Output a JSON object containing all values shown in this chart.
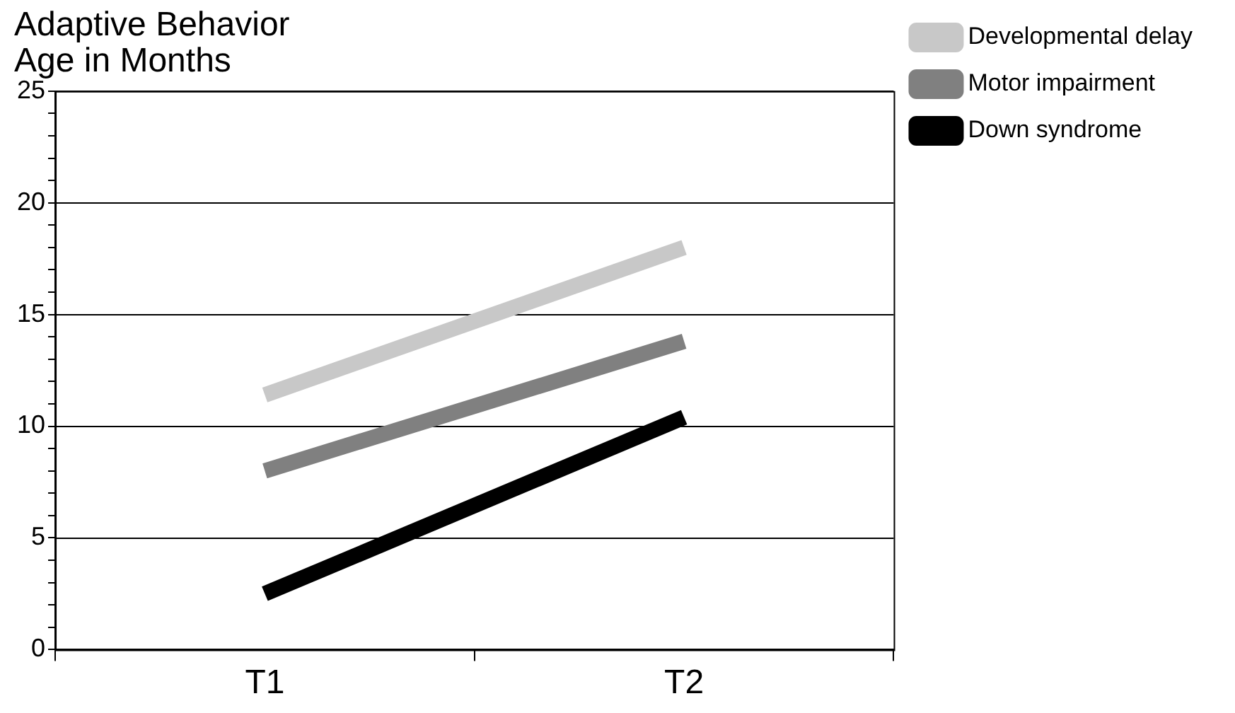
{
  "chart_data": {
    "type": "line",
    "title": "Adaptive Behavior\nAge in Months",
    "categories": [
      "T1",
      "T2"
    ],
    "series": [
      {
        "name": "Developmental delay",
        "color": "#c8c8c8",
        "values": [
          11.4,
          18.0
        ]
      },
      {
        "name": "Motor impairment",
        "color": "#808080",
        "values": [
          8.0,
          13.8
        ]
      },
      {
        "name": "Down syndrome",
        "color": "#000000",
        "values": [
          2.5,
          10.4
        ]
      }
    ],
    "ylim": [
      0,
      25
    ],
    "yticks": [
      0,
      {
        "value": 1,
        "label": null
      },
      {
        "value": 2,
        "label": null
      },
      {
        "value": 3,
        "label": null
      },
      {
        "value": 4,
        "label": null
      },
      5,
      {
        "value": 6,
        "label": null
      },
      {
        "value": 7,
        "label": null
      },
      {
        "value": 8,
        "label": null
      },
      {
        "value": 9,
        "label": null
      },
      10,
      {
        "value": 11,
        "label": null
      },
      {
        "value": 12,
        "label": null
      },
      {
        "value": 13,
        "label": null
      },
      {
        "value": 14,
        "label": null
      },
      15,
      {
        "value": 16,
        "label": null
      },
      {
        "value": 17,
        "label": null
      },
      {
        "value": 18,
        "label": null
      },
      {
        "value": 19,
        "label": null
      },
      20,
      {
        "value": 21,
        "label": null
      },
      {
        "value": 22,
        "label": null
      },
      {
        "value": 23,
        "label": null
      },
      {
        "value": 24,
        "label": null
      },
      25
    ],
    "grid": "y",
    "legend": "top right",
    "marker": "none",
    "line_style": "solid"
  }
}
